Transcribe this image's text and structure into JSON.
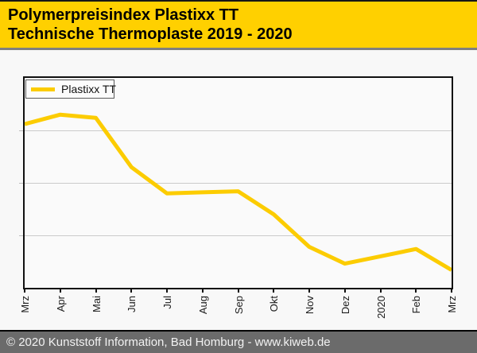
{
  "header": {
    "title_line1": "Polymerpreisindex Plastixx TT",
    "title_line2": "Technische Thermoplaste 2019 - 2020"
  },
  "legend": {
    "label": "Plastixx TT"
  },
  "footer": {
    "text": "© 2020 Kunststoff Information, Bad Homburg - www.kiweb.de"
  },
  "colors": {
    "banner_yellow": "#FFD000",
    "line_yellow": "#FCCC00",
    "separator_gray": "#7F7F7F",
    "footer_gray": "#6B6B6B",
    "gridline_gray": "#CBCBCB",
    "plot_border": "#111111"
  },
  "chart_data": {
    "type": "line",
    "title": "Polymerpreisindex Plastixx TT",
    "subtitle": "Technische Thermoplaste 2019 - 2020",
    "x_tick_labels": [
      "Mrz",
      "Apr",
      "Mai",
      "Jun",
      "Jul",
      "Aug",
      "Sep",
      "Okt",
      "Nov",
      "Dez",
      "2020",
      "Feb",
      "Mrz"
    ],
    "y_axis": {
      "tick_labels_visible": false,
      "horizontal_gridlines_pct": [
        25,
        50,
        75
      ],
      "range_pct": [
        0,
        100
      ]
    },
    "series": [
      {
        "name": "Plastixx TT",
        "color": "#FCCC00",
        "values_pct_of_plot_height": [
          78,
          82.5,
          81,
          57.5,
          45,
          45.5,
          46,
          35,
          19.5,
          11.5,
          15,
          18.5,
          8.5
        ]
      }
    ],
    "legend_position": "top-left",
    "grid": true
  }
}
